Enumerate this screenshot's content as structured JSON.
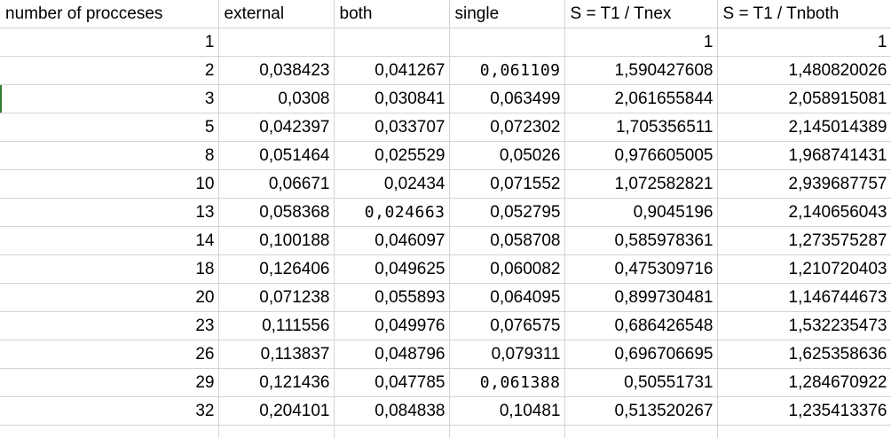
{
  "headers": [
    "number of procceses",
    "external",
    "both",
    "single",
    "S = T1 / Tnex",
    "S = T1 / Tnboth"
  ],
  "rows": [
    [
      "1",
      "",
      "",
      "",
      "1",
      "1"
    ],
    [
      "2",
      "0,038423",
      "0,041267",
      "0,061109",
      "1,590427608",
      "1,480820026"
    ],
    [
      "3",
      "0,0308",
      "0,030841",
      "0,063499",
      "2,061655844",
      "2,058915081"
    ],
    [
      "5",
      "0,042397",
      "0,033707",
      "0,072302",
      "1,705356511",
      "2,145014389"
    ],
    [
      "8",
      "0,051464",
      "0,025529",
      "0,05026",
      "0,976605005",
      "1,968741431"
    ],
    [
      "10",
      "0,06671",
      "0,02434",
      "0,071552",
      "1,072582821",
      "2,939687757"
    ],
    [
      "13",
      "0,058368",
      "0,024663",
      "0,052795",
      "0,9045196",
      "2,140656043"
    ],
    [
      "14",
      "0,100188",
      "0,046097",
      "0,058708",
      "0,585978361",
      "1,273575287"
    ],
    [
      "18",
      "0,126406",
      "0,049625",
      "0,060082",
      "0,475309716",
      "1,210720403"
    ],
    [
      "20",
      "0,071238",
      "0,055893",
      "0,064095",
      "0,899730481",
      "1,146744673"
    ],
    [
      "23",
      "0,111556",
      "0,049976",
      "0,076575",
      "0,686426548",
      "1,532235473"
    ],
    [
      "26",
      "0,113837",
      "0,048796",
      "0,079311",
      "0,696706695",
      "1,625358636"
    ],
    [
      "29",
      "0,121436",
      "0,047785",
      "0,061388",
      "0,50551731",
      "1,284670922"
    ],
    [
      "32",
      "0,204101",
      "0,084838",
      "0,10481",
      "0,513520267",
      "1,235413376"
    ]
  ],
  "gridline_color": "#d4d4d4",
  "selection_marker_color": "#2e7d32"
}
